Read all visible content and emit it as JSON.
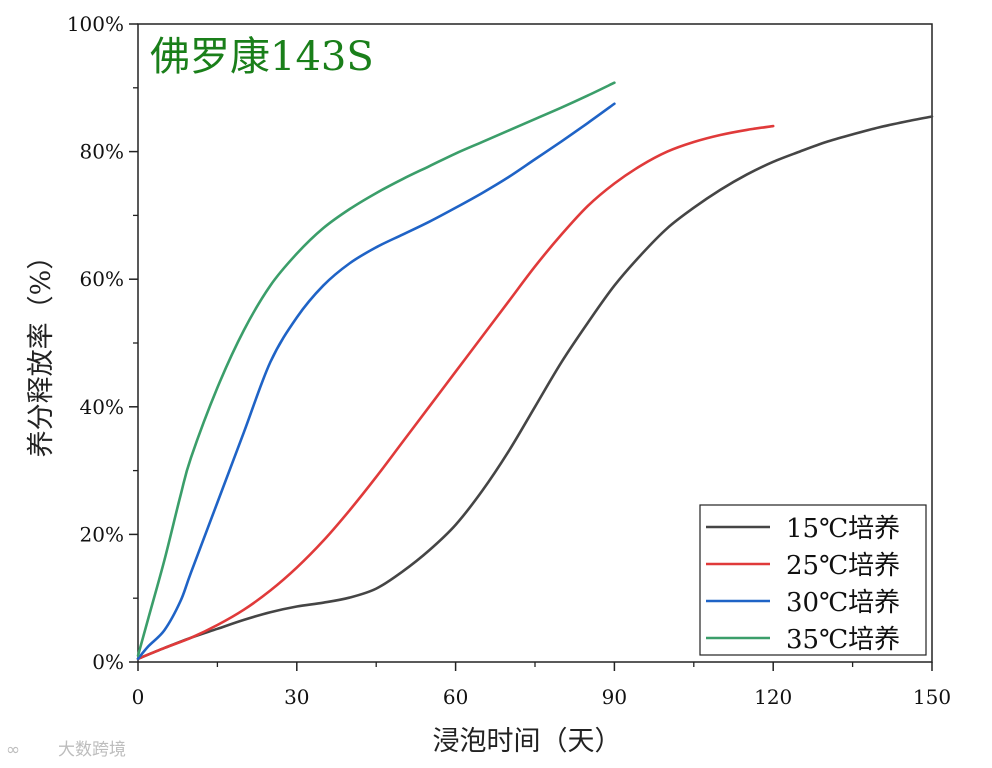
{
  "chart_data": {
    "type": "line",
    "title": "佛罗康143S",
    "title_color": "#1a7f1a",
    "xlabel": "浸泡时间（天）",
    "ylabel": "养分释放率（%）",
    "xlim": [
      0,
      150
    ],
    "ylim": [
      0,
      1
    ],
    "x_ticks": [
      0,
      30,
      60,
      90,
      120,
      150
    ],
    "x_tick_labels": [
      "0",
      "30",
      "60",
      "90",
      "120",
      "150"
    ],
    "y_ticks": [
      0,
      0.2,
      0.4,
      0.6,
      0.8,
      1.0
    ],
    "y_tick_labels": [
      "0%",
      "20%",
      "40%",
      "60%",
      "80%",
      "100%"
    ],
    "grid": false,
    "legend_position": "bottom-right",
    "series": [
      {
        "name": "15℃培养",
        "color": "#454545",
        "x": [
          0,
          5,
          10,
          15,
          20,
          25,
          30,
          35,
          40,
          45,
          50,
          55,
          60,
          65,
          70,
          75,
          80,
          85,
          90,
          95,
          100,
          105,
          110,
          115,
          120,
          125,
          130,
          135,
          140,
          145,
          150
        ],
        "y": [
          0.005,
          0.022,
          0.038,
          0.052,
          0.066,
          0.078,
          0.087,
          0.093,
          0.101,
          0.115,
          0.142,
          0.175,
          0.215,
          0.268,
          0.33,
          0.4,
          0.47,
          0.532,
          0.59,
          0.638,
          0.68,
          0.712,
          0.74,
          0.764,
          0.784,
          0.8,
          0.815,
          0.827,
          0.838,
          0.847,
          0.855
        ]
      },
      {
        "name": "25℃培养",
        "color": "#e03a3a",
        "x": [
          0,
          5,
          10,
          15,
          20,
          25,
          30,
          35,
          40,
          45,
          50,
          55,
          60,
          65,
          70,
          75,
          80,
          85,
          90,
          95,
          100,
          105,
          110,
          115,
          120
        ],
        "y": [
          0.005,
          0.022,
          0.038,
          0.058,
          0.082,
          0.112,
          0.148,
          0.19,
          0.238,
          0.29,
          0.345,
          0.4,
          0.455,
          0.51,
          0.565,
          0.62,
          0.67,
          0.715,
          0.75,
          0.778,
          0.8,
          0.815,
          0.826,
          0.834,
          0.84
        ]
      },
      {
        "name": "30℃培养",
        "color": "#1f63c6",
        "x": [
          0,
          2,
          5,
          8,
          10,
          15,
          20,
          25,
          30,
          35,
          40,
          45,
          50,
          55,
          60,
          65,
          70,
          75,
          80,
          85,
          90
        ],
        "y": [
          0.005,
          0.025,
          0.05,
          0.095,
          0.14,
          0.25,
          0.36,
          0.47,
          0.54,
          0.59,
          0.625,
          0.65,
          0.67,
          0.69,
          0.712,
          0.735,
          0.76,
          0.788,
          0.816,
          0.845,
          0.875
        ]
      },
      {
        "name": "35℃培养",
        "color": "#3b9e6a",
        "x": [
          0,
          2,
          5,
          8,
          10,
          15,
          20,
          25,
          30,
          35,
          40,
          45,
          50,
          55,
          60,
          65,
          70,
          75,
          80,
          85,
          90
        ],
        "y": [
          0.01,
          0.07,
          0.16,
          0.26,
          0.32,
          0.43,
          0.52,
          0.59,
          0.64,
          0.68,
          0.71,
          0.735,
          0.757,
          0.777,
          0.797,
          0.815,
          0.833,
          0.851,
          0.869,
          0.888,
          0.908
        ]
      }
    ]
  },
  "watermark": {
    "text": "大数跨境"
  }
}
